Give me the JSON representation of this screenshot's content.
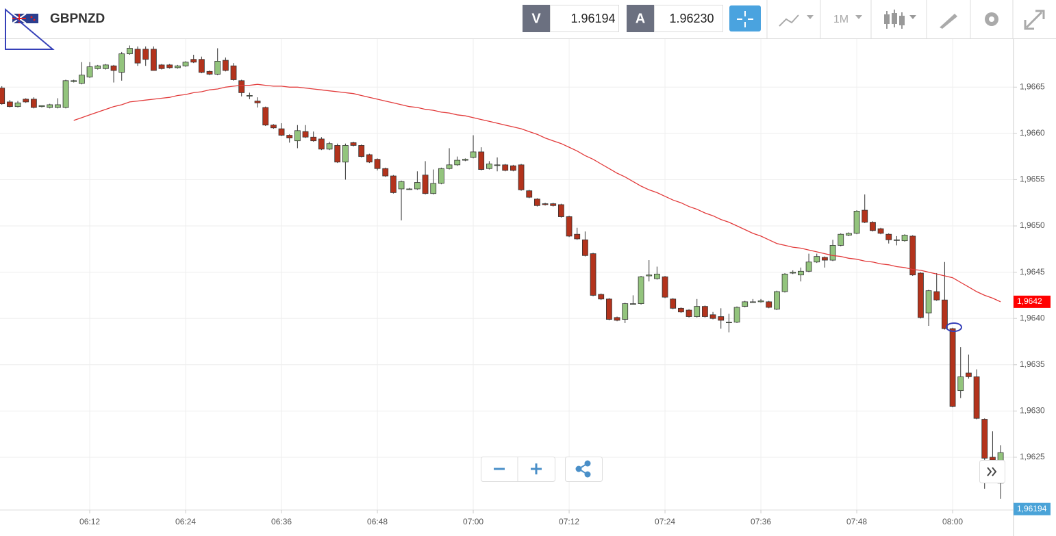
{
  "toolbar": {
    "symbol": "GBPNZD",
    "bid_label": "V",
    "bid": "1.96194",
    "ask_label": "A",
    "ask": "1.96230",
    "timeframe": "1M"
  },
  "chart_data": {
    "type": "candlestick",
    "categories": [
      null,
      null,
      null,
      null,
      null,
      null,
      null,
      null,
      null,
      null,
      null,
      "06:12",
      null,
      null,
      null,
      null,
      null,
      null,
      null,
      null,
      null,
      null,
      null,
      "06:24",
      null,
      null,
      null,
      null,
      null,
      null,
      null,
      null,
      null,
      null,
      null,
      "06:36",
      null,
      null,
      null,
      null,
      null,
      null,
      null,
      null,
      null,
      null,
      null,
      "06:48",
      null,
      null,
      null,
      null,
      null,
      null,
      null,
      null,
      null,
      null,
      null,
      "07:00",
      null,
      null,
      null,
      null,
      null,
      null,
      null,
      null,
      null,
      null,
      null,
      "07:12",
      null,
      null,
      null,
      null,
      null,
      null,
      null,
      null,
      null,
      null,
      null,
      "07:24",
      null,
      null,
      null,
      null,
      null,
      null,
      null,
      null,
      null,
      null,
      null,
      "07:36",
      null,
      null,
      null,
      null,
      null,
      null,
      null,
      null,
      null,
      null,
      null,
      "07:48",
      null,
      null,
      null,
      null,
      null,
      null,
      null,
      null,
      null,
      null,
      null,
      "08:00",
      null,
      null,
      null,
      null,
      null,
      null
    ],
    "open": [
      1.96649,
      1.96634,
      1.96629,
      1.96637,
      1.96637,
      1.96629,
      1.96628,
      1.96628,
      1.96628,
      1.96656,
      1.96654,
      1.96661,
      1.9667,
      1.9667,
      1.96673,
      1.96666,
      1.96686,
      1.96691,
      1.96691,
      1.96691,
      1.96674,
      1.96674,
      1.96671,
      1.96673,
      1.9668,
      1.9668,
      1.96667,
      1.96664,
      1.96679,
      1.96673,
      1.96657,
      1.96641,
      1.96635,
      1.96628,
      1.96609,
      1.96605,
      1.96598,
      1.96592,
      1.96602,
      1.96596,
      1.96594,
      1.96583,
      1.96587,
      1.96569,
      1.9659,
      1.96587,
      1.96577,
      1.96572,
      1.96562,
      1.96554,
      1.9654,
      1.9654,
      1.9654,
      1.96555,
      1.96535,
      1.96546,
      1.96562,
      1.96566,
      1.96571,
      1.96574,
      1.9658,
      1.96562,
      1.96566,
      1.96566,
      1.96565,
      1.96566,
      1.96538,
      1.96529,
      1.96524,
      1.96524,
      1.96523,
      1.9651,
      1.96491,
      1.96485,
      1.9647,
      1.96426,
      1.96421,
      1.96401,
      1.96399,
      1.96416,
      1.96416,
      1.96446,
      1.96443,
      1.96445,
      1.96421,
      1.96411,
      1.96409,
      1.96402,
      1.96413,
      1.96404,
      1.96402,
      1.96396,
      1.96396,
      1.96413,
      1.96418,
      1.96418,
      1.96418,
      1.9641,
      1.96429,
      1.96449,
      1.96447,
      1.96451,
      1.96461,
      1.96466,
      1.96463,
      1.96479,
      1.9649,
      1.96492,
      1.96517,
      1.96504,
      1.96497,
      1.96491,
      1.96485,
      1.96484,
      1.96489,
      1.96449,
      1.96406,
      1.96429,
      1.9642,
      1.96389,
      1.96322,
      1.96341,
      1.96337,
      1.96291,
      1.9625,
      1.96222
    ],
    "high": [
      1.96651,
      1.96636,
      1.96635,
      1.96638,
      1.96639,
      1.9663,
      1.96632,
      1.96638,
      1.96658,
      1.96658,
      1.96677,
      1.96677,
      1.96674,
      1.96675,
      1.96674,
      1.96688,
      1.96695,
      1.96694,
      1.96694,
      1.96694,
      1.96675,
      1.96675,
      1.96674,
      1.96678,
      1.96685,
      1.96683,
      1.96668,
      1.96692,
      1.96682,
      1.96676,
      1.96658,
      1.96644,
      1.96639,
      1.96629,
      1.9661,
      1.96611,
      1.96599,
      1.96609,
      1.96609,
      1.96602,
      1.96596,
      1.96591,
      1.96589,
      1.96589,
      1.96591,
      1.96588,
      1.96578,
      1.96573,
      1.96563,
      1.96555,
      1.96549,
      1.96541,
      1.96559,
      1.9657,
      1.96561,
      1.96563,
      1.96584,
      1.96575,
      1.96573,
      1.96598,
      1.96585,
      1.9657,
      1.96574,
      1.96567,
      1.96566,
      1.96567,
      1.96539,
      1.9653,
      1.96525,
      1.96525,
      1.96524,
      1.96511,
      1.96498,
      1.96494,
      1.96471,
      1.96427,
      1.96422,
      1.96402,
      1.96417,
      1.96425,
      1.96446,
      1.96463,
      1.96456,
      1.96446,
      1.96422,
      1.96412,
      1.9641,
      1.96421,
      1.96414,
      1.96407,
      1.96411,
      1.96405,
      1.96413,
      1.96419,
      1.96421,
      1.96421,
      1.96419,
      1.9643,
      1.96449,
      1.96452,
      1.96455,
      1.9647,
      1.9647,
      1.96467,
      1.96485,
      1.96492,
      1.96493,
      1.96517,
      1.96534,
      1.96505,
      1.96498,
      1.96492,
      1.96489,
      1.96491,
      1.9649,
      1.9645,
      1.96431,
      1.96449,
      1.96461,
      1.9639,
      1.96369,
      1.96361,
      1.96345,
      1.96292,
      1.96278,
      1.96263
    ],
    "low": [
      1.96631,
      1.96628,
      1.96628,
      1.96633,
      1.96627,
      1.96628,
      1.96627,
      1.96627,
      1.96627,
      1.96655,
      1.96653,
      1.9666,
      1.96669,
      1.96669,
      1.96655,
      1.96657,
      1.96685,
      1.96673,
      1.96673,
      1.96668,
      1.96669,
      1.9667,
      1.9667,
      1.96672,
      1.96676,
      1.96665,
      1.96663,
      1.96663,
      1.96667,
      1.96657,
      1.9664,
      1.96637,
      1.96628,
      1.96608,
      1.96605,
      1.96597,
      1.9659,
      1.96584,
      1.96595,
      1.96591,
      1.96582,
      1.96582,
      1.96568,
      1.9655,
      1.96586,
      1.96574,
      1.96568,
      1.9656,
      1.96553,
      1.96535,
      1.96506,
      1.96539,
      1.96539,
      1.96534,
      1.96534,
      1.96545,
      1.96561,
      1.96565,
      1.9657,
      1.96573,
      1.9656,
      1.96561,
      1.96559,
      1.96559,
      1.96559,
      1.96538,
      1.9653,
      1.96521,
      1.96522,
      1.96521,
      1.96509,
      1.96488,
      1.96485,
      1.96467,
      1.96424,
      1.9642,
      1.96398,
      1.96397,
      1.96395,
      1.96415,
      1.96415,
      1.9644,
      1.96442,
      1.96422,
      1.9641,
      1.96406,
      1.96401,
      1.96401,
      1.96401,
      1.96399,
      1.96389,
      1.96385,
      1.96395,
      1.96412,
      1.96417,
      1.96417,
      1.96411,
      1.96409,
      1.96428,
      1.96448,
      1.9644,
      1.9645,
      1.9646,
      1.96455,
      1.96462,
      1.96478,
      1.96489,
      1.96491,
      1.96503,
      1.96494,
      1.96491,
      1.96481,
      1.96479,
      1.96483,
      1.96446,
      1.964,
      1.96392,
      1.96419,
      1.96388,
      1.96304,
      1.96314,
      1.96335,
      1.96291,
      1.96216,
      1.96222,
      1.96205
    ],
    "close": [
      1.96632,
      1.96629,
      1.96633,
      1.96634,
      1.96628,
      1.9663,
      1.96631,
      1.96631,
      1.96657,
      1.96657,
      1.96663,
      1.96672,
      1.96673,
      1.96674,
      1.96668,
      1.96686,
      1.96692,
      1.96676,
      1.9668,
      1.96668,
      1.9667,
      1.96671,
      1.96673,
      1.96677,
      1.96677,
      1.96666,
      1.96664,
      1.96678,
      1.96668,
      1.96658,
      1.96644,
      1.96641,
      1.96633,
      1.96609,
      1.96606,
      1.96598,
      1.96595,
      1.96603,
      1.96596,
      1.96592,
      1.96583,
      1.96589,
      1.96569,
      1.96587,
      1.96587,
      1.96575,
      1.96569,
      1.96562,
      1.96554,
      1.96536,
      1.96548,
      1.9654,
      1.96547,
      1.96535,
      1.96546,
      1.96562,
      1.96566,
      1.96571,
      1.96572,
      1.9658,
      1.96561,
      1.96567,
      1.96566,
      1.9656,
      1.9656,
      1.96539,
      1.96531,
      1.96522,
      1.96523,
      1.96522,
      1.9651,
      1.96489,
      1.96486,
      1.96468,
      1.96425,
      1.96421,
      1.96399,
      1.96398,
      1.96416,
      1.96416,
      1.96445,
      1.96447,
      1.96448,
      1.96423,
      1.96411,
      1.96407,
      1.96402,
      1.96413,
      1.96402,
      1.964,
      1.96398,
      1.96396,
      1.96412,
      1.96418,
      1.96418,
      1.96419,
      1.96412,
      1.96429,
      1.96448,
      1.9645,
      1.96451,
      1.96461,
      1.96467,
      1.96463,
      1.96479,
      1.96491,
      1.96492,
      1.96516,
      1.96504,
      1.96495,
      1.96492,
      1.96485,
      1.96485,
      1.9649,
      1.96447,
      1.96401,
      1.9643,
      1.9642,
      1.96389,
      1.96305,
      1.96337,
      1.96337,
      1.96292,
      1.96249,
      1.96247,
      1.96255
    ],
    "up_color": "#93c47d",
    "down_color": "#b3331c",
    "ma": {
      "color": "#e23a3a",
      "values": [
        null,
        null,
        null,
        null,
        null,
        null,
        null,
        null,
        null,
        1.96614,
        1.96617,
        1.9662,
        1.96623,
        1.96626,
        1.96629,
        1.96631,
        1.96634,
        1.96635,
        1.96636,
        1.96637,
        1.96638,
        1.96639,
        1.96641,
        1.96642,
        1.96644,
        1.96645,
        1.96647,
        1.96648,
        1.9665,
        1.96651,
        1.96652,
        1.96652,
        1.96653,
        1.96652,
        1.96651,
        1.96651,
        1.9665,
        1.9665,
        1.96649,
        1.96648,
        1.96647,
        1.96646,
        1.96645,
        1.96644,
        1.96643,
        1.96641,
        1.96639,
        1.96637,
        1.96635,
        1.96633,
        1.96631,
        1.96629,
        1.96628,
        1.96626,
        1.96625,
        1.96623,
        1.96622,
        1.9662,
        1.96619,
        1.96617,
        1.96615,
        1.96613,
        1.96611,
        1.96609,
        1.96607,
        1.96605,
        1.96602,
        1.96599,
        1.96595,
        1.96592,
        1.96589,
        1.96585,
        1.96581,
        1.96576,
        1.96572,
        1.96567,
        1.96562,
        1.96557,
        1.96553,
        1.96548,
        1.96543,
        1.96539,
        1.96536,
        1.96532,
        1.96528,
        1.96525,
        1.96521,
        1.96518,
        1.96514,
        1.96511,
        1.96507,
        1.96504,
        1.965,
        1.96496,
        1.96492,
        1.96489,
        1.96485,
        1.96481,
        1.96479,
        1.96477,
        1.96476,
        1.96474,
        1.96472,
        1.9647,
        1.96468,
        1.96467,
        1.96465,
        1.96464,
        1.96462,
        1.96461,
        1.96459,
        1.96458,
        1.96456,
        1.96455,
        1.96453,
        1.96452,
        1.9645,
        1.96448,
        1.96446,
        1.96444,
        1.96439,
        1.96434,
        1.96429,
        1.96425,
        1.96422,
        1.96418
      ]
    },
    "price_tags": [
      {
        "value": 1.96418,
        "label": "1,9642",
        "color": "#ff0000"
      },
      {
        "value": 1.96194,
        "label": "1,96194",
        "color": "#4aa3d8"
      }
    ],
    "ylim": [
      1.96193,
      1.96702
    ],
    "yticks": [
      {
        "value": 1.9625,
        "label": "1,9625"
      },
      {
        "value": 1.963,
        "label": "1,9630"
      },
      {
        "value": 1.9635,
        "label": "1,9635"
      },
      {
        "value": 1.964,
        "label": "1,9640"
      },
      {
        "value": 1.9645,
        "label": "1,9645"
      },
      {
        "value": 1.965,
        "label": "1,9650"
      },
      {
        "value": 1.9655,
        "label": "1,9655"
      },
      {
        "value": 1.966,
        "label": "1,9660"
      },
      {
        "value": 1.9665,
        "label": "1,9665"
      }
    ],
    "grid": true
  }
}
